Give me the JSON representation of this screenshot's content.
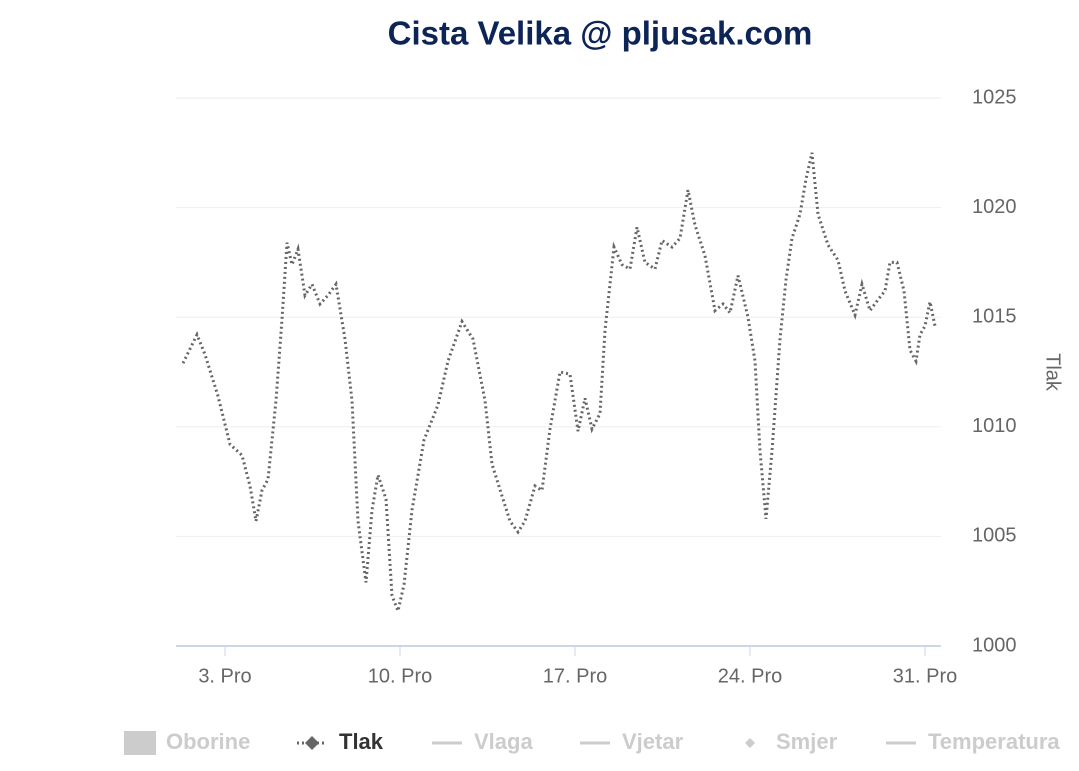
{
  "chart_data": {
    "type": "line",
    "title": "Cista Velika @ pljusak.com",
    "y_label": "Tlak",
    "x": [
      1.32,
      1.88,
      2.2,
      2.72,
      3.2,
      3.68,
      4.0,
      4.24,
      4.48,
      4.72,
      5.04,
      5.28,
      5.48,
      5.68,
      5.92,
      6.2,
      6.48,
      6.8,
      7.12,
      7.44,
      7.8,
      8.08,
      8.32,
      8.64,
      8.88,
      9.12,
      9.44,
      9.68,
      9.92,
      10.16,
      10.48,
      10.96,
      11.52,
      11.92,
      12.48,
      12.92,
      13.4,
      13.68,
      14.12,
      14.4,
      14.72,
      15.0,
      15.4,
      15.68,
      16.0,
      16.4,
      16.8,
      17.12,
      17.4,
      17.68,
      18.0,
      18.2,
      18.56,
      18.88,
      19.2,
      19.48,
      19.8,
      20.2,
      20.48,
      20.88,
      21.2,
      21.52,
      21.8,
      22.2,
      22.6,
      22.92,
      23.2,
      23.52,
      23.92,
      24.2,
      24.4,
      24.64,
      24.88,
      25.2,
      25.44,
      25.68,
      26.0,
      26.24,
      26.48,
      26.72,
      27.12,
      27.52,
      27.8,
      28.2,
      28.48,
      28.8,
      29.12,
      29.4,
      29.6,
      29.88,
      30.16,
      30.4,
      30.64,
      30.8,
      31.0,
      31.2,
      31.4
    ],
    "series": [
      {
        "name": "Oborine",
        "visible": false,
        "legend_symbol": "box"
      },
      {
        "name": "Tlak",
        "visible": true,
        "legend_symbol": "dotted-diamond",
        "color": "#666666",
        "values": [
          1012.9,
          1014.2,
          1013.3,
          1011.4,
          1009.2,
          1008.7,
          1007.3,
          1005.7,
          1007.1,
          1007.6,
          1011.2,
          1014.9,
          1018.4,
          1017.4,
          1018.1,
          1016.0,
          1016.5,
          1015.6,
          1016.0,
          1016.5,
          1014.0,
          1011.2,
          1005.7,
          1002.9,
          1006.2,
          1007.8,
          1006.7,
          1002.3,
          1001.6,
          1002.8,
          1006.2,
          1009.4,
          1011.0,
          1013.0,
          1014.8,
          1014.0,
          1011.2,
          1008.3,
          1006.7,
          1005.7,
          1005.2,
          1005.7,
          1007.3,
          1007.1,
          1009.9,
          1012.5,
          1012.4,
          1009.8,
          1011.3,
          1009.9,
          1010.6,
          1014.4,
          1018.2,
          1017.4,
          1017.2,
          1019.1,
          1017.5,
          1017.2,
          1018.5,
          1018.2,
          1018.6,
          1020.8,
          1019.2,
          1017.8,
          1015.3,
          1015.6,
          1015.2,
          1016.9,
          1015.0,
          1013.0,
          1008.9,
          1005.8,
          1008.9,
          1014.0,
          1016.7,
          1018.6,
          1019.7,
          1021.3,
          1022.5,
          1019.7,
          1018.3,
          1017.6,
          1016.2,
          1015.1,
          1016.5,
          1015.3,
          1015.8,
          1016.2,
          1017.5,
          1017.5,
          1016.2,
          1013.5,
          1013.0,
          1014.2,
          1014.6,
          1015.7,
          1014.6
        ]
      },
      {
        "name": "Vlaga",
        "visible": false,
        "legend_symbol": "line"
      },
      {
        "name": "Vjetar",
        "visible": false,
        "legend_symbol": "line"
      },
      {
        "name": "Smjer",
        "visible": false,
        "legend_symbol": "diamond"
      },
      {
        "name": "Temperatura",
        "visible": false,
        "legend_symbol": "line"
      }
    ],
    "xlim": [
      1.04,
      31.64
    ],
    "xticks": [
      {
        "value": 3,
        "label": "3. Pro"
      },
      {
        "value": 10,
        "label": "10. Pro"
      },
      {
        "value": 17,
        "label": "17. Pro"
      },
      {
        "value": 24,
        "label": "24. Pro"
      },
      {
        "value": 31,
        "label": "31. Pro"
      }
    ],
    "ylim": [
      1000,
      1025
    ],
    "yticks": [
      1000,
      1005,
      1010,
      1015,
      1020,
      1025
    ],
    "grid": true
  }
}
